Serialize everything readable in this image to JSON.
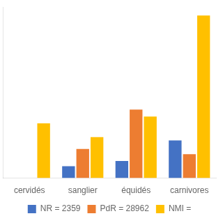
{
  "chart_data": {
    "type": "bar",
    "categories": [
      "cervidés",
      "sanglier",
      "équidés",
      "carnivores"
    ],
    "series": [
      {
        "name": "NR = 2359",
        "color": "#4472c4",
        "values": [
          0,
          7,
          10,
          22
        ]
      },
      {
        "name": "PdR = 28962",
        "color": "#ed7d31",
        "values": [
          0,
          17,
          40,
          14
        ]
      },
      {
        "name": "NMI =",
        "color": "#ffc000",
        "values": [
          32,
          24,
          36,
          95
        ]
      }
    ],
    "ylim": [
      0,
      100
    ],
    "grid": false,
    "legend": "bottom",
    "tick_labels": "x"
  }
}
